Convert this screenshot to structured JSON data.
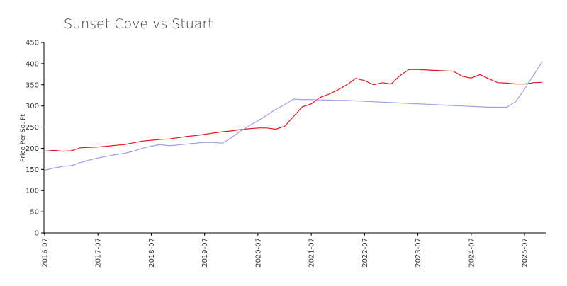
{
  "chart_data": {
    "type": "line",
    "title": "Sunset Cove vs Stuart",
    "y_label": "Price Per Sq. Ft",
    "x": [
      "2016-07",
      "2016-09",
      "2016-11",
      "2017-01",
      "2017-03",
      "2017-05",
      "2017-07",
      "2017-09",
      "2017-11",
      "2018-01",
      "2018-03",
      "2018-05",
      "2018-07",
      "2018-09",
      "2018-11",
      "2019-01",
      "2019-03",
      "2019-05",
      "2019-07",
      "2019-09",
      "2019-11",
      "2020-01",
      "2020-03",
      "2020-05",
      "2020-07",
      "2020-09",
      "2020-11",
      "2021-01",
      "2021-03",
      "2021-05",
      "2021-07",
      "2021-09",
      "2021-11",
      "2022-01",
      "2022-03",
      "2022-05",
      "2022-07",
      "2022-09",
      "2022-11",
      "2023-01",
      "2023-03",
      "2023-05",
      "2023-07",
      "2023-09",
      "2023-11",
      "2024-01",
      "2024-03",
      "2024-05",
      "2024-07",
      "2024-09",
      "2024-11",
      "2025-01",
      "2025-03",
      "2025-05",
      "2025-07",
      "2025-09",
      "2025-11"
    ],
    "series": [
      {
        "color": "#e8141c",
        "values": [
          193,
          195,
          193,
          194,
          201,
          202,
          203,
          205,
          207,
          209,
          213,
          217,
          219,
          221,
          222,
          225,
          228,
          230,
          233,
          236,
          239,
          241,
          244,
          246,
          248,
          248,
          245,
          252,
          275,
          298,
          305,
          320,
          328,
          338,
          350,
          365,
          360,
          350,
          355,
          352,
          372,
          386,
          386,
          385,
          384,
          383,
          382,
          370,
          366,
          374,
          364,
          355,
          354,
          352,
          352,
          355,
          356
        ]
      },
      {
        "color": "#9c9cf0",
        "values": [
          148,
          153,
          157,
          159,
          166,
          172,
          177,
          181,
          185,
          188,
          193,
          200,
          205,
          209,
          206,
          208,
          210,
          212,
          214,
          214,
          212,
          225,
          240,
          253,
          265,
          278,
          292,
          303,
          316,
          315,
          315,
          314,
          314,
          313,
          313,
          312,
          311,
          310,
          309,
          308,
          307,
          306,
          305,
          304,
          303,
          302,
          301,
          300,
          299,
          298,
          297,
          297,
          297,
          310,
          340,
          372,
          405
        ]
      }
    ],
    "xticks": [
      "2016-07",
      "2017-07",
      "2018-07",
      "2019-07",
      "2020-07",
      "2021-07",
      "2022-07",
      "2023-07",
      "2024-07",
      "2025-07"
    ],
    "ylim": [
      0,
      450
    ],
    "yticks": [
      0,
      50,
      100,
      150,
      200,
      250,
      300,
      350,
      400,
      450
    ]
  }
}
